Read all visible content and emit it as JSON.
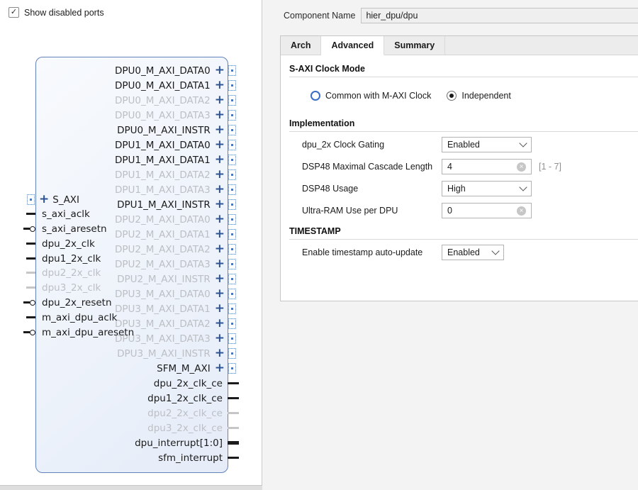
{
  "colors": {
    "accent_blue": "#2d5395",
    "pin_dot_blue": "#4a77bd",
    "block_border": "#6282bd",
    "disabled_gray": "#bcbfc4",
    "radio_blue": "#3a6cc8"
  },
  "icons": {
    "expand_plus": "+",
    "checkbox_check": "✓",
    "clear": "×"
  },
  "left_panel": {
    "show_disabled_ports": {
      "label": "Show disabled ports",
      "checked": true
    },
    "block": {
      "left_ports": [
        {
          "name": "S_AXI",
          "type": "interface",
          "enabled": true
        },
        {
          "name": "s_axi_aclk",
          "type": "plain",
          "enabled": true
        },
        {
          "name": "s_axi_aresetn",
          "type": "reset",
          "enabled": true
        },
        {
          "name": "dpu_2x_clk",
          "type": "plain",
          "enabled": true
        },
        {
          "name": "dpu1_2x_clk",
          "type": "plain",
          "enabled": true
        },
        {
          "name": "dpu2_2x_clk",
          "type": "plain",
          "enabled": false
        },
        {
          "name": "dpu3_2x_clk",
          "type": "plain",
          "enabled": false
        },
        {
          "name": "dpu_2x_resetn",
          "type": "reset",
          "enabled": true
        },
        {
          "name": "m_axi_dpu_aclk",
          "type": "plain",
          "enabled": true
        },
        {
          "name": "m_axi_dpu_aresetn",
          "type": "reset",
          "enabled": true
        }
      ],
      "right_ports": [
        {
          "name": "DPU0_M_AXI_DATA0",
          "type": "interface",
          "enabled": true
        },
        {
          "name": "DPU0_M_AXI_DATA1",
          "type": "interface",
          "enabled": true
        },
        {
          "name": "DPU0_M_AXI_DATA2",
          "type": "interface",
          "enabled": false
        },
        {
          "name": "DPU0_M_AXI_DATA3",
          "type": "interface",
          "enabled": false
        },
        {
          "name": "DPU0_M_AXI_INSTR",
          "type": "interface",
          "enabled": true
        },
        {
          "name": "DPU1_M_AXI_DATA0",
          "type": "interface",
          "enabled": true
        },
        {
          "name": "DPU1_M_AXI_DATA1",
          "type": "interface",
          "enabled": true
        },
        {
          "name": "DPU1_M_AXI_DATA2",
          "type": "interface",
          "enabled": false
        },
        {
          "name": "DPU1_M_AXI_DATA3",
          "type": "interface",
          "enabled": false
        },
        {
          "name": "DPU1_M_AXI_INSTR",
          "type": "interface",
          "enabled": true
        },
        {
          "name": "DPU2_M_AXI_DATA0",
          "type": "interface",
          "enabled": false
        },
        {
          "name": "DPU2_M_AXI_DATA1",
          "type": "interface",
          "enabled": false
        },
        {
          "name": "DPU2_M_AXI_DATA2",
          "type": "interface",
          "enabled": false
        },
        {
          "name": "DPU2_M_AXI_DATA3",
          "type": "interface",
          "enabled": false
        },
        {
          "name": "DPU2_M_AXI_INSTR",
          "type": "interface",
          "enabled": false
        },
        {
          "name": "DPU3_M_AXI_DATA0",
          "type": "interface",
          "enabled": false
        },
        {
          "name": "DPU3_M_AXI_DATA1",
          "type": "interface",
          "enabled": false
        },
        {
          "name": "DPU3_M_AXI_DATA2",
          "type": "interface",
          "enabled": false
        },
        {
          "name": "DPU3_M_AXI_DATA3",
          "type": "interface",
          "enabled": false
        },
        {
          "name": "DPU3_M_AXI_INSTR",
          "type": "interface",
          "enabled": false
        },
        {
          "name": "SFM_M_AXI",
          "type": "interface",
          "enabled": true
        },
        {
          "name": "dpu_2x_clk_ce",
          "type": "plain",
          "enabled": true
        },
        {
          "name": "dpu1_2x_clk_ce",
          "type": "plain",
          "enabled": true
        },
        {
          "name": "dpu2_2x_clk_ce",
          "type": "plain",
          "enabled": false
        },
        {
          "name": "dpu3_2x_clk_ce",
          "type": "plain",
          "enabled": false
        },
        {
          "name": "dpu_interrupt[1:0]",
          "type": "bus",
          "enabled": true
        },
        {
          "name": "sfm_interrupt",
          "type": "plain",
          "enabled": true
        }
      ]
    }
  },
  "header": {
    "component_name_label": "Component Name",
    "component_name_value": "hier_dpu/dpu"
  },
  "tabs": [
    {
      "label": "Arch",
      "active": false
    },
    {
      "label": "Advanced",
      "active": true
    },
    {
      "label": "Summary",
      "active": false
    }
  ],
  "sections": {
    "s_axi_clock_mode": {
      "title": "S-AXI Clock Mode",
      "options": [
        {
          "label": "Common with M-AXI Clock",
          "selected": false
        },
        {
          "label": "Independent",
          "selected": true
        }
      ]
    },
    "implementation": {
      "title": "Implementation",
      "rows": [
        {
          "label": "dpu_2x Clock Gating",
          "control": "select",
          "value": "Enabled"
        },
        {
          "label": "DSP48 Maximal Cascade Length",
          "control": "input",
          "value": "4",
          "hint": "[1 - 7]",
          "clearable": true
        },
        {
          "label": "DSP48 Usage",
          "control": "select",
          "value": "High"
        },
        {
          "label": "Ultra-RAM Use per DPU",
          "control": "input",
          "value": "0",
          "clearable": true
        }
      ]
    },
    "timestamp": {
      "title": "TIMESTAMP",
      "rows": [
        {
          "label": "Enable timestamp auto-update",
          "control": "select",
          "value": "Enabled",
          "narrow": true
        }
      ]
    }
  }
}
